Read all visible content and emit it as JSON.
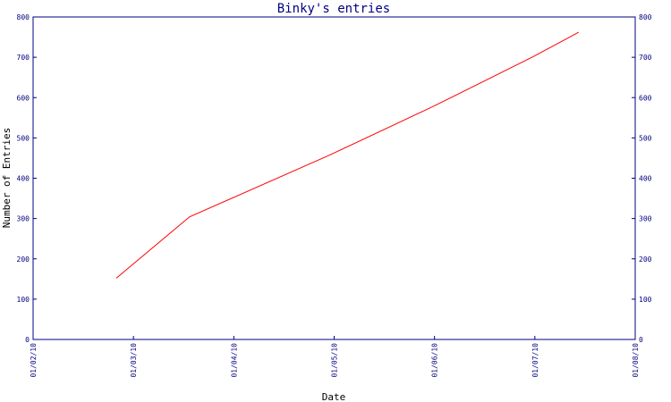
{
  "chart_data": {
    "type": "line",
    "title": "Binky's entries",
    "xlabel": "Date",
    "ylabel": "Number of Entries",
    "x_ticks": [
      "01/02/10",
      "01/03/10",
      "01/04/10",
      "01/05/10",
      "01/06/10",
      "01/07/10",
      "01/08/10"
    ],
    "y_ticks": [
      "0",
      "100",
      "200",
      "300",
      "400",
      "500",
      "600",
      "700",
      "800"
    ],
    "ylim": [
      0,
      800
    ],
    "xlim": [
      "2010-02-01",
      "2010-08-01"
    ],
    "right_axis": true,
    "grid": false,
    "series": [
      {
        "color": "#ff0000",
        "points": [
          {
            "x": "2010-02-26",
            "y": 152
          },
          {
            "x": "2010-03-20",
            "y": 304
          },
          {
            "x": "2010-05-01",
            "y": 457
          },
          {
            "x": "2010-06-01",
            "y": 577
          },
          {
            "x": "2010-07-01",
            "y": 700
          },
          {
            "x": "2010-07-15",
            "y": 762
          }
        ]
      }
    ],
    "colors": {
      "axis": "#000080",
      "line": "#ff0000"
    }
  }
}
